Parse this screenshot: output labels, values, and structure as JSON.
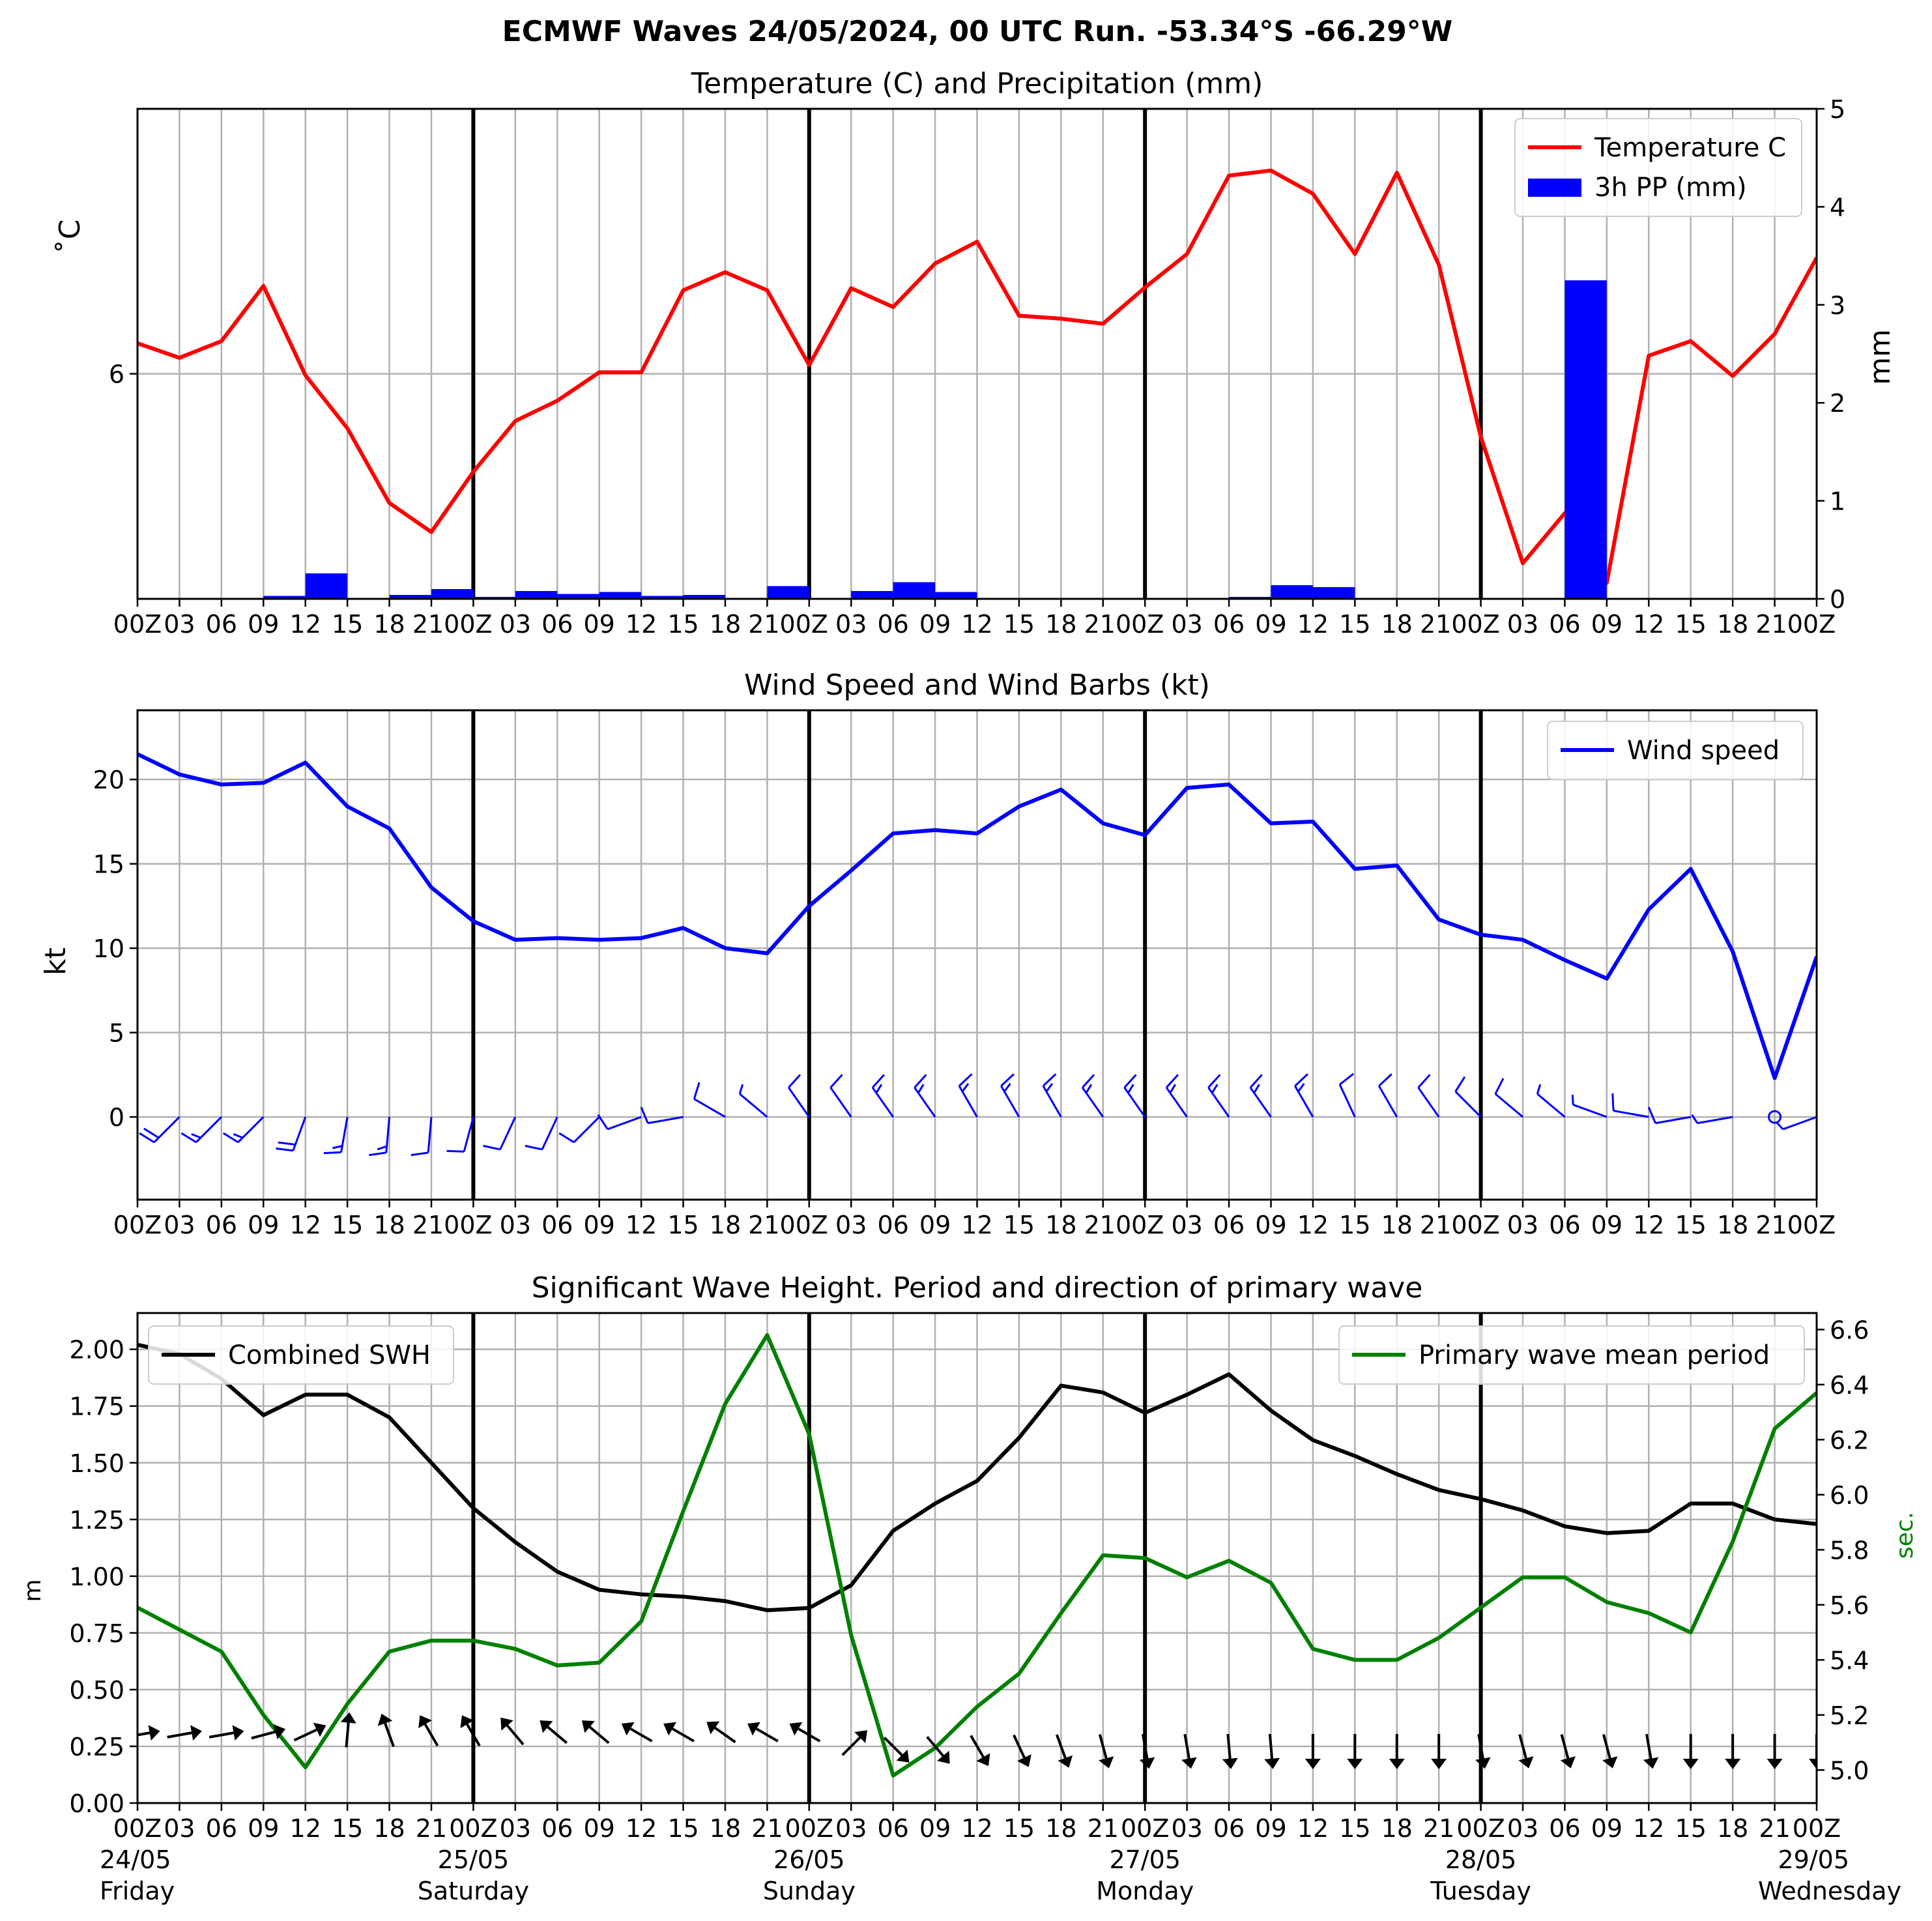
{
  "suptitle": "ECMWF Waves 24/05/2024, 00 UTC Run. -53.34°S -66.29°W",
  "colors": {
    "temperature": "#ff0000",
    "precipitation": "#0000ff",
    "wind": "#0000ff",
    "swh": "#000000",
    "period": "#008000",
    "grid": "#b0b0b0",
    "axes": "#000000"
  },
  "x_ticks": [
    "00Z",
    "03",
    "06",
    "09",
    "12",
    "15",
    "18",
    "21",
    "00Z",
    "03",
    "06",
    "09",
    "12",
    "15",
    "18",
    "21",
    "00Z",
    "03",
    "06",
    "09",
    "12",
    "15",
    "18",
    "21",
    "00Z",
    "03",
    "06",
    "09",
    "12",
    "15",
    "18",
    "21",
    "00Z",
    "03",
    "06",
    "09",
    "12",
    "15",
    "18",
    "21",
    "00Z"
  ],
  "x_tick_labels_compact": [
    "00Z",
    "03",
    "06",
    "09",
    "12",
    "15",
    "18",
    "2100Z",
    "03",
    "06",
    "09",
    "12",
    "15",
    "18",
    "2100Z",
    "03",
    "06",
    "09",
    "12",
    "15",
    "18",
    "2100Z",
    "03",
    "06",
    "09",
    "12",
    "15",
    "18",
    "2100Z",
    "03",
    "06",
    "09",
    "12",
    "15",
    "18",
    "2100Z"
  ],
  "day_labels": [
    {
      "date": "24/05",
      "day": "Friday"
    },
    {
      "date": "25/05",
      "day": "Saturday"
    },
    {
      "date": "26/05",
      "day": "Sunday"
    },
    {
      "date": "27/05",
      "day": "Monday"
    },
    {
      "date": "28/05",
      "day": "Tuesday"
    },
    {
      "date": "29/05",
      "day": "Wednesday"
    }
  ],
  "chart_data": [
    {
      "type": "line",
      "title": "Temperature (C) and Precipitation (mm)",
      "ylabel": "$^\\circ$C",
      "ylabel_display": "˚C",
      "ylabel_right": "mm",
      "y_ticks": [
        6
      ],
      "ylim": [
        2.9,
        9.65
      ],
      "y2_ticks": [
        0,
        1,
        2,
        3,
        4,
        5
      ],
      "ylim_right": [
        0,
        5
      ],
      "grid": true,
      "legend": "top-right",
      "x_hours": [
        0,
        3,
        6,
        9,
        12,
        15,
        18,
        21,
        24,
        27,
        30,
        33,
        36,
        39,
        42,
        45,
        48,
        51,
        54,
        57,
        60,
        63,
        66,
        69,
        72,
        75,
        78,
        81,
        84,
        87,
        90,
        93,
        96,
        99,
        102,
        105,
        108,
        111,
        114,
        117,
        120
      ],
      "series": [
        {
          "name": "Temperature C",
          "kind": "line",
          "axis": "left",
          "values": [
            6.42,
            6.22,
            6.45,
            7.21,
            5.98,
            5.25,
            4.22,
            3.82,
            4.65,
            5.35,
            5.63,
            6.02,
            6.02,
            7.15,
            7.4,
            7.15,
            6.12,
            7.18,
            6.92,
            7.52,
            7.82,
            6.8,
            6.76,
            6.69,
            7.19,
            7.65,
            8.73,
            8.8,
            8.48,
            7.65,
            8.77,
            7.5,
            5.13,
            3.39,
            4.08,
            3.12,
            6.25,
            6.45,
            5.97,
            6.55,
            7.6
          ]
        },
        {
          "name": "3h PP (mm)",
          "kind": "bar",
          "axis": "right",
          "values": [
            0,
            0,
            0,
            0.03,
            0.26,
            0,
            0.04,
            0.1,
            0.02,
            0.08,
            0.05,
            0.07,
            0.03,
            0.04,
            0,
            0.13,
            0,
            0.08,
            0.17,
            0.07,
            0,
            0,
            0,
            0,
            0.01,
            0,
            0.02,
            0.14,
            0.12,
            0.01,
            0.01,
            0.01,
            0,
            0,
            3.25,
            0.01,
            0,
            0,
            0,
            0
          ]
        }
      ]
    },
    {
      "type": "line",
      "title": "Wind Speed and Wind Barbs (kt)",
      "ylabel": "kt",
      "y_ticks": [
        0,
        5,
        10,
        15,
        20
      ],
      "ylim": [
        -4.9,
        24.1
      ],
      "grid": true,
      "legend": "top-right",
      "x_hours": [
        0,
        3,
        6,
        9,
        12,
        15,
        18,
        21,
        24,
        27,
        30,
        33,
        36,
        39,
        42,
        45,
        48,
        51,
        54,
        57,
        60,
        63,
        66,
        69,
        72,
        75,
        78,
        81,
        84,
        87,
        90,
        93,
        96,
        99,
        102,
        105,
        108,
        111,
        114,
        117,
        120
      ],
      "series": [
        {
          "name": "Wind speed",
          "values": [
            21.5,
            20.3,
            19.7,
            19.8,
            21.0,
            18.4,
            17.1,
            13.6,
            11.6,
            10.5,
            10.6,
            10.5,
            10.6,
            11.2,
            10.0,
            9.7,
            12.5,
            14.6,
            16.8,
            17.0,
            16.8,
            18.4,
            19.4,
            17.4,
            16.7,
            19.5,
            19.7,
            17.4,
            17.5,
            14.7,
            14.9,
            11.7,
            10.8,
            10.5,
            9.3,
            8.2,
            12.3,
            14.7,
            9.8,
            2.3,
            9.5
          ]
        }
      ],
      "wind_barbs": {
        "note": "blue wind barbs drawn along y=0, one per 3 h step",
        "direction_deg": [
          315,
          315,
          315,
          315,
          340,
          350,
          355,
          355,
          345,
          335,
          335,
          315,
          290,
          280,
          240,
          230,
          215,
          215,
          215,
          215,
          210,
          210,
          210,
          215,
          215,
          215,
          215,
          215,
          210,
          205,
          210,
          215,
          225,
          230,
          230,
          250,
          260,
          280,
          280,
          280,
          290
        ]
      }
    },
    {
      "type": "line",
      "title": "Significant Wave Height. Period and direction of primary wave",
      "ylabel": "m",
      "ylabel_right": "sec.",
      "y_ticks": [
        0.0,
        0.25,
        0.5,
        0.75,
        1.0,
        1.25,
        1.5,
        1.75,
        2.0
      ],
      "y_tick_labels": [
        "0.00",
        "0.25",
        "0.50",
        "0.75",
        "1.00",
        "1.25",
        "1.50",
        "1.75",
        "2.00"
      ],
      "ylim": [
        0.0,
        2.16
      ],
      "y2_ticks": [
        5.0,
        5.2,
        5.4,
        5.6,
        5.8,
        6.0,
        6.2,
        6.4,
        6.6
      ],
      "y2_tick_labels": [
        "5.0",
        "5.2",
        "5.4",
        "5.6",
        "5.8",
        "6.0",
        "6.2",
        "6.4",
        "6.6"
      ],
      "ylim_right": [
        4.88,
        6.66
      ],
      "grid": true,
      "legend_left": "top-left",
      "legend_right": "top-right",
      "x_hours": [
        0,
        3,
        6,
        9,
        12,
        15,
        18,
        21,
        24,
        27,
        30,
        33,
        36,
        39,
        42,
        45,
        48,
        51,
        54,
        57,
        60,
        63,
        66,
        69,
        72,
        75,
        78,
        81,
        84,
        87,
        90,
        93,
        96,
        99,
        102,
        105,
        108,
        111,
        114,
        117,
        120
      ],
      "series": [
        {
          "name": "Combined SWH",
          "axis": "left",
          "values": [
            2.02,
            1.98,
            1.87,
            1.71,
            1.8,
            1.8,
            1.7,
            1.5,
            1.3,
            1.15,
            1.02,
            0.94,
            0.92,
            0.91,
            0.89,
            0.85,
            0.86,
            0.96,
            1.2,
            1.32,
            1.42,
            1.61,
            1.84,
            1.81,
            1.72,
            1.8,
            1.89,
            1.73,
            1.6,
            1.53,
            1.45,
            1.38,
            1.34,
            1.29,
            1.22,
            1.19,
            1.2,
            1.32,
            1.32,
            1.25,
            1.23
          ]
        },
        {
          "name": "Primary wave mean period",
          "axis": "right",
          "values": [
            5.59,
            5.51,
            5.43,
            5.2,
            5.01,
            5.24,
            5.43,
            5.47,
            5.47,
            5.44,
            5.38,
            5.39,
            5.54,
            5.94,
            6.33,
            6.58,
            6.22,
            5.49,
            4.98,
            5.08,
            5.23,
            5.35,
            5.57,
            5.78,
            5.77,
            5.7,
            5.76,
            5.68,
            5.44,
            5.4,
            5.4,
            5.48,
            5.59,
            5.7,
            5.7,
            5.61,
            5.57,
            5.5,
            5.83,
            6.24,
            6.37
          ]
        }
      ],
      "wave_arrows": {
        "note": "black direction arrows drawn along the SWH axis, one per 3 h step",
        "y_values": [
          0.3,
          0.3,
          0.3,
          0.3,
          0.3,
          0.3,
          0.3,
          0.3,
          0.3,
          0.3,
          0.3,
          0.3,
          0.3,
          0.3,
          0.3,
          0.3,
          0.3,
          0.25,
          0.25,
          0.25,
          0.25,
          0.25,
          0.25,
          0.25,
          0.25,
          0.25,
          0.25,
          0.25,
          0.25,
          0.25,
          0.25,
          0.25,
          0.25,
          0.25,
          0.25,
          0.25,
          0.25,
          0.25,
          0.25,
          0.25,
          0.25
        ],
        "heading_deg": [
          80,
          80,
          80,
          75,
          65,
          5,
          340,
          330,
          330,
          320,
          310,
          310,
          300,
          300,
          305,
          300,
          300,
          45,
          135,
          140,
          150,
          155,
          160,
          165,
          170,
          170,
          175,
          175,
          180,
          180,
          180,
          180,
          170,
          165,
          165,
          165,
          170,
          180,
          180,
          180,
          180
        ]
      }
    }
  ]
}
